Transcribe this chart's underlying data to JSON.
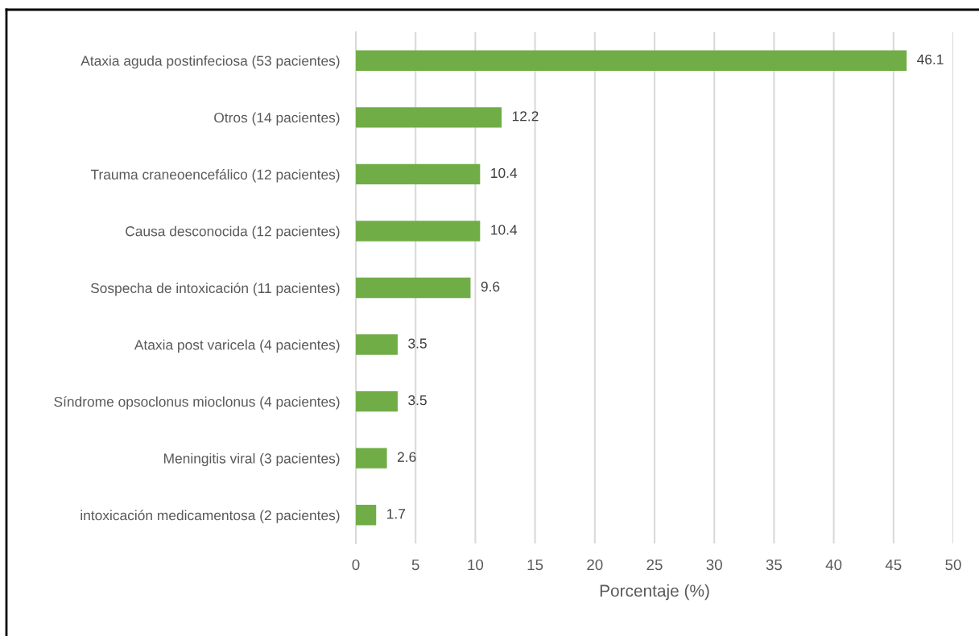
{
  "chart_data": {
    "type": "bar",
    "orientation": "horizontal",
    "categories": [
      "Ataxia aguda postinfeciosa (53 pacientes)",
      "Otros (14 pacientes)",
      "Trauma craneoencefálico (12 pacientes)",
      "Causa desconocida (12 pacientes)",
      "Sospecha de intoxicación (11 pacientes)",
      "Ataxia post varicela (4 pacientes)",
      "Síndrome opsoclonus mioclonus (4 pacientes)",
      "Meningitis viral (3 pacientes)",
      "intoxicación medicamentosa (2 pacientes)"
    ],
    "values": [
      46.1,
      12.2,
      10.4,
      10.4,
      9.6,
      3.5,
      3.5,
      2.6,
      1.7
    ],
    "color": "#70ad47",
    "xlabel": "Porcentaje (%)",
    "xlim": [
      0,
      50
    ],
    "xticks": [
      0,
      5,
      10,
      15,
      20,
      25,
      30,
      35,
      40,
      45,
      50
    ],
    "grid": "x",
    "data_labels": true
  }
}
